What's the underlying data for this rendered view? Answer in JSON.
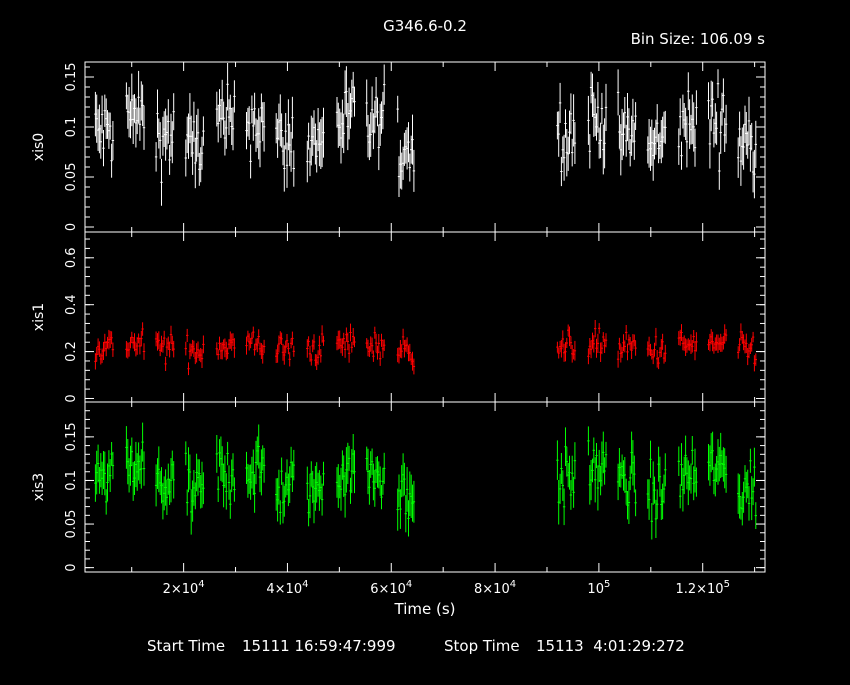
{
  "header": {
    "title": "G346.6-0.2",
    "bin_size": "Bin Size: 106.09 s"
  },
  "footer": {
    "start_label": "Start Time",
    "start_value": "15111 16:59:47:999",
    "stop_label": "Stop Time",
    "stop_value": "15113  4:01:29:272"
  },
  "chart_data": {
    "type": "scatter",
    "description_style": "stacked light curves with vertical error bars",
    "x_axis": {
      "label": "Time (s)",
      "range": [
        1000,
        132000
      ],
      "ticks": [
        {
          "value": 20000,
          "mantissa": "2",
          "exponent": "4",
          "pre": ""
        },
        {
          "value": 40000,
          "mantissa": "4",
          "exponent": "4",
          "pre": ""
        },
        {
          "value": 60000,
          "mantissa": "6",
          "exponent": "4",
          "pre": ""
        },
        {
          "value": 80000,
          "mantissa": "8",
          "exponent": "4",
          "pre": ""
        },
        {
          "value": 100000,
          "mantissa": "",
          "exponent": "5",
          "pre": ""
        },
        {
          "value": 120000,
          "mantissa": "1.2",
          "exponent": "5",
          "pre": ""
        }
      ],
      "times_sign": "×",
      "base": "10"
    },
    "observation_windows": [
      [
        3000,
        66000
      ],
      [
        92000,
        131500
      ]
    ],
    "panels": [
      {
        "ylabel": "xis0",
        "color": "#ffffff",
        "ylim": [
          -0.005,
          0.165
        ],
        "ticks": [
          0,
          0.05,
          0.1,
          0.15
        ],
        "tick_labels": [
          "0",
          "0.05",
          "0.1",
          "0.15"
        ],
        "mean": 0.095,
        "spread": 0.035,
        "err": 0.022
      },
      {
        "ylabel": "xis1",
        "color": "#ff0000",
        "ylim": [
          -0.015,
          0.71
        ],
        "ticks": [
          0,
          0.2,
          0.4,
          0.6
        ],
        "tick_labels": [
          "0",
          "0.2",
          "0.4",
          "0.6"
        ],
        "mean": 0.22,
        "spread": 0.06,
        "err": 0.035
      },
      {
        "ylabel": "xis3",
        "color": "#00ff00",
        "ylim": [
          -0.005,
          0.19
        ],
        "ticks": [
          0,
          0.05,
          0.1,
          0.15
        ],
        "tick_labels": [
          "0",
          "0.05",
          "0.1",
          "0.15"
        ],
        "mean": 0.1,
        "spread": 0.033,
        "err": 0.022
      }
    ]
  }
}
